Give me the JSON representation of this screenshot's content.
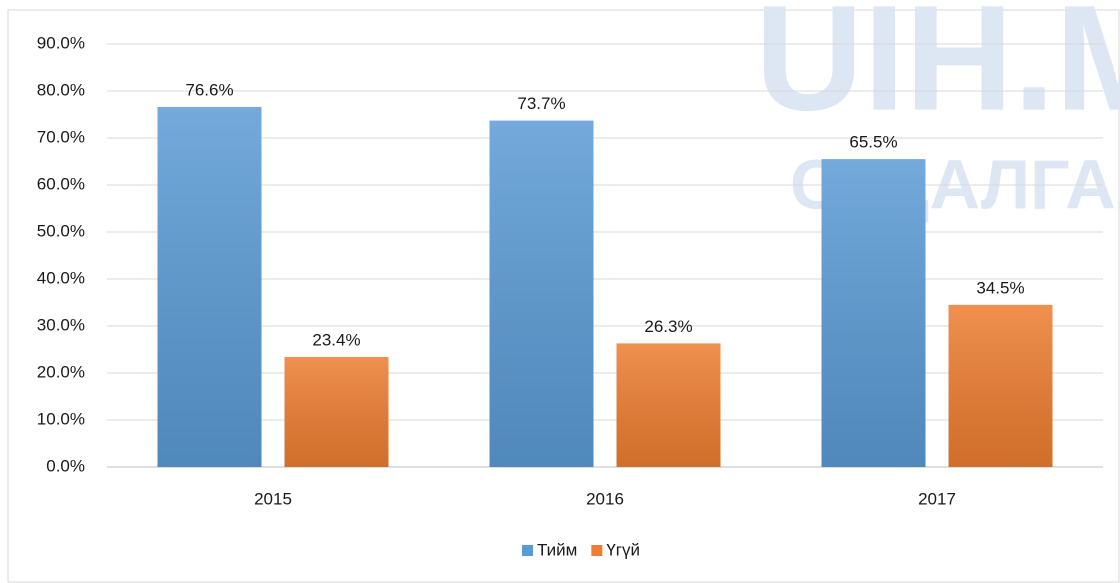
{
  "chart_data": {
    "type": "bar",
    "categories": [
      "2015",
      "2016",
      "2017"
    ],
    "series": [
      {
        "name": "Тийм",
        "color": "#5b9bd5",
        "values": [
          76.6,
          73.7,
          65.5
        ],
        "value_labels": [
          "76.6%",
          "73.7%",
          "65.5%"
        ]
      },
      {
        "name": "Үгүй",
        "color": "#ed7d31",
        "values": [
          23.4,
          26.3,
          34.5
        ],
        "value_labels": [
          "23.4%",
          "26.3%",
          "34.5%"
        ]
      }
    ],
    "ylim": [
      0,
      90
    ],
    "yticks": [
      {
        "value": 0,
        "label": "0.0%"
      },
      {
        "value": 10,
        "label": "10.0%"
      },
      {
        "value": 20,
        "label": "20.0%"
      },
      {
        "value": 30,
        "label": "30.0%"
      },
      {
        "value": 40,
        "label": "40.0%"
      },
      {
        "value": 50,
        "label": "50.0%"
      },
      {
        "value": 60,
        "label": "60.0%"
      },
      {
        "value": 70,
        "label": "70.0%"
      },
      {
        "value": 80,
        "label": "80.0%"
      },
      {
        "value": 90,
        "label": "90.0%"
      }
    ],
    "grid": true,
    "legend": "bottom",
    "watermark": [
      "UIH.M",
      "СУДАЛГААНЫ"
    ]
  }
}
